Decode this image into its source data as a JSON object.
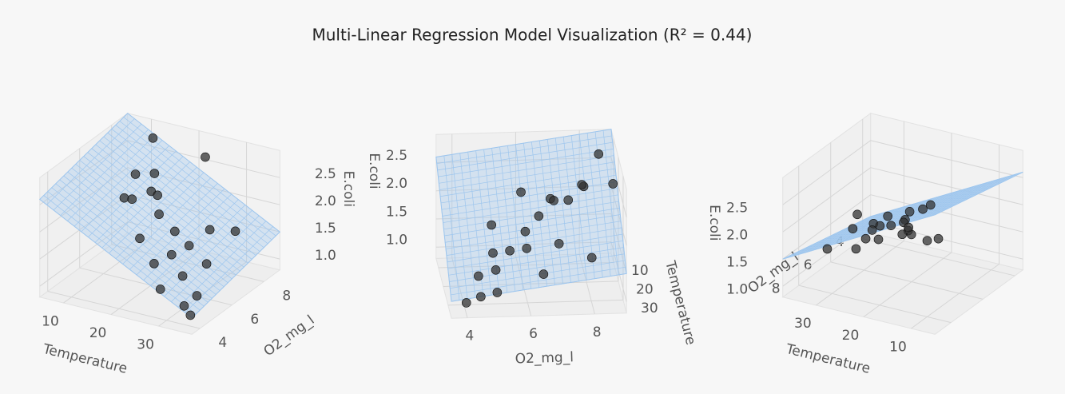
{
  "title": "Multi-Linear Regression Model Visualization (R² = 0.44)",
  "chart_data": [
    {
      "type": "scatter3d",
      "xlabel": "Temperature",
      "ylabel": "O2_mg_l",
      "zlabel": "E.coli",
      "xlim": [
        5,
        37
      ],
      "ylim": [
        3.5,
        9
      ],
      "zlim": [
        0.8,
        3.0
      ],
      "xticks": [
        10,
        20,
        30
      ],
      "yticks": [
        4,
        6,
        8
      ],
      "zticks": [
        {
          "value": 1.0,
          "label": "1.0"
        },
        {
          "value": 1.5,
          "label": "1.5"
        },
        {
          "value": 2.0,
          "label": "2.0"
        },
        {
          "value": 2.5,
          "label": "2.5"
        }
      ],
      "color": "#333333",
      "plane_color": "#9ec6ee",
      "x": [
        12,
        14,
        15,
        10,
        11,
        18,
        20,
        22,
        25,
        26,
        28,
        30,
        24,
        27,
        32,
        33,
        29,
        30,
        35,
        21,
        16,
        31
      ],
      "y": [
        8.5,
        8,
        7.5,
        8,
        7,
        7,
        6.5,
        8.8,
        6,
        5.5,
        6,
        5,
        5,
        4.5,
        4.5,
        5,
        7,
        6.5,
        4,
        5,
        6,
        8
      ],
      "z": [
        2.8,
        2.3,
        2.1,
        2.2,
        2.0,
        2.2,
        2.0,
        2.6,
        1.9,
        1.6,
        1.7,
        1.4,
        1.5,
        1.2,
        1.0,
        1.1,
        1.8,
        1.3,
        1.0,
        1.9,
        2.3,
        1.6
      ],
      "plane": {
        "x": [
          5,
          37
        ],
        "y": [
          3.5,
          9
        ],
        "z": [
          [
            2.6,
            3.0
          ],
          [
            1.1,
            1.5
          ]
        ]
      }
    },
    {
      "type": "scatter3d",
      "xlabel": "Temperature",
      "ylabel": "O2_mg_l",
      "zlabel": "E.coli",
      "xlim": [
        5,
        37
      ],
      "ylim": [
        3.5,
        9
      ],
      "zlim": [
        0.8,
        3.0
      ],
      "xticks": [
        10,
        20,
        30
      ],
      "yticks": [
        4,
        6,
        8
      ],
      "zticks": [
        {
          "value": 1.0,
          "label": "1.0"
        },
        {
          "value": 1.5,
          "label": "1.5"
        },
        {
          "value": 2.0,
          "label": "2.0"
        },
        {
          "value": 2.5,
          "label": "2.5"
        }
      ],
      "color": "#333333",
      "plane_color": "#9ec6ee",
      "x": [
        12,
        14,
        15,
        10,
        11,
        18,
        20,
        22,
        25,
        26,
        28,
        30,
        24,
        27,
        32,
        33,
        29,
        30,
        35,
        21,
        16,
        31
      ],
      "y": [
        8.5,
        8,
        7.5,
        8,
        7,
        7,
        6.5,
        8.8,
        6,
        5.5,
        6,
        5,
        5,
        4.5,
        4.5,
        5,
        7,
        6.5,
        4,
        5,
        6,
        8
      ],
      "z": [
        2.8,
        2.3,
        2.1,
        2.2,
        2.0,
        2.2,
        2.0,
        2.6,
        1.9,
        1.6,
        1.7,
        1.4,
        1.5,
        1.2,
        1.0,
        1.1,
        1.8,
        1.3,
        1.0,
        1.9,
        2.3,
        1.6
      ],
      "plane": {
        "x": [
          5,
          37
        ],
        "y": [
          3.5,
          9
        ],
        "z": [
          [
            2.6,
            3.0
          ],
          [
            1.1,
            1.5
          ]
        ]
      }
    },
    {
      "type": "scatter3d",
      "xlabel": "Temperature",
      "ylabel": "O2_mg_l",
      "zlabel": "E.coli",
      "xlim": [
        5,
        37
      ],
      "ylim": [
        3.5,
        9
      ],
      "zlim": [
        0.8,
        3.0
      ],
      "xticks": [
        10,
        20,
        30
      ],
      "yticks": [
        4,
        6,
        8
      ],
      "zticks": [
        {
          "value": 1.0,
          "label": "1.0"
        },
        {
          "value": 1.5,
          "label": "1.5"
        },
        {
          "value": 2.0,
          "label": "2.0"
        },
        {
          "value": 2.5,
          "label": "2.5"
        }
      ],
      "color": "#333333",
      "plane_color": "#9ec6ee",
      "x": [
        12,
        14,
        15,
        10,
        11,
        18,
        20,
        22,
        25,
        26,
        28,
        30,
        24,
        27,
        32,
        33,
        29,
        30,
        35,
        21,
        16,
        31
      ],
      "y": [
        8.5,
        8,
        7.5,
        8,
        7,
        7,
        6.5,
        8.8,
        6,
        5.5,
        6,
        5,
        5,
        4.5,
        4.5,
        5,
        7,
        6.5,
        4,
        5,
        6,
        8
      ],
      "z": [
        2.8,
        2.3,
        2.1,
        2.2,
        2.0,
        2.2,
        2.0,
        2.6,
        1.9,
        1.6,
        1.7,
        1.4,
        1.5,
        1.2,
        1.0,
        1.1,
        1.8,
        1.3,
        1.0,
        1.9,
        2.3,
        1.6
      ],
      "plane": {
        "x": [
          5,
          37
        ],
        "y": [
          3.5,
          9
        ],
        "z": [
          [
            2.6,
            3.0
          ],
          [
            1.1,
            1.5
          ]
        ]
      }
    }
  ]
}
